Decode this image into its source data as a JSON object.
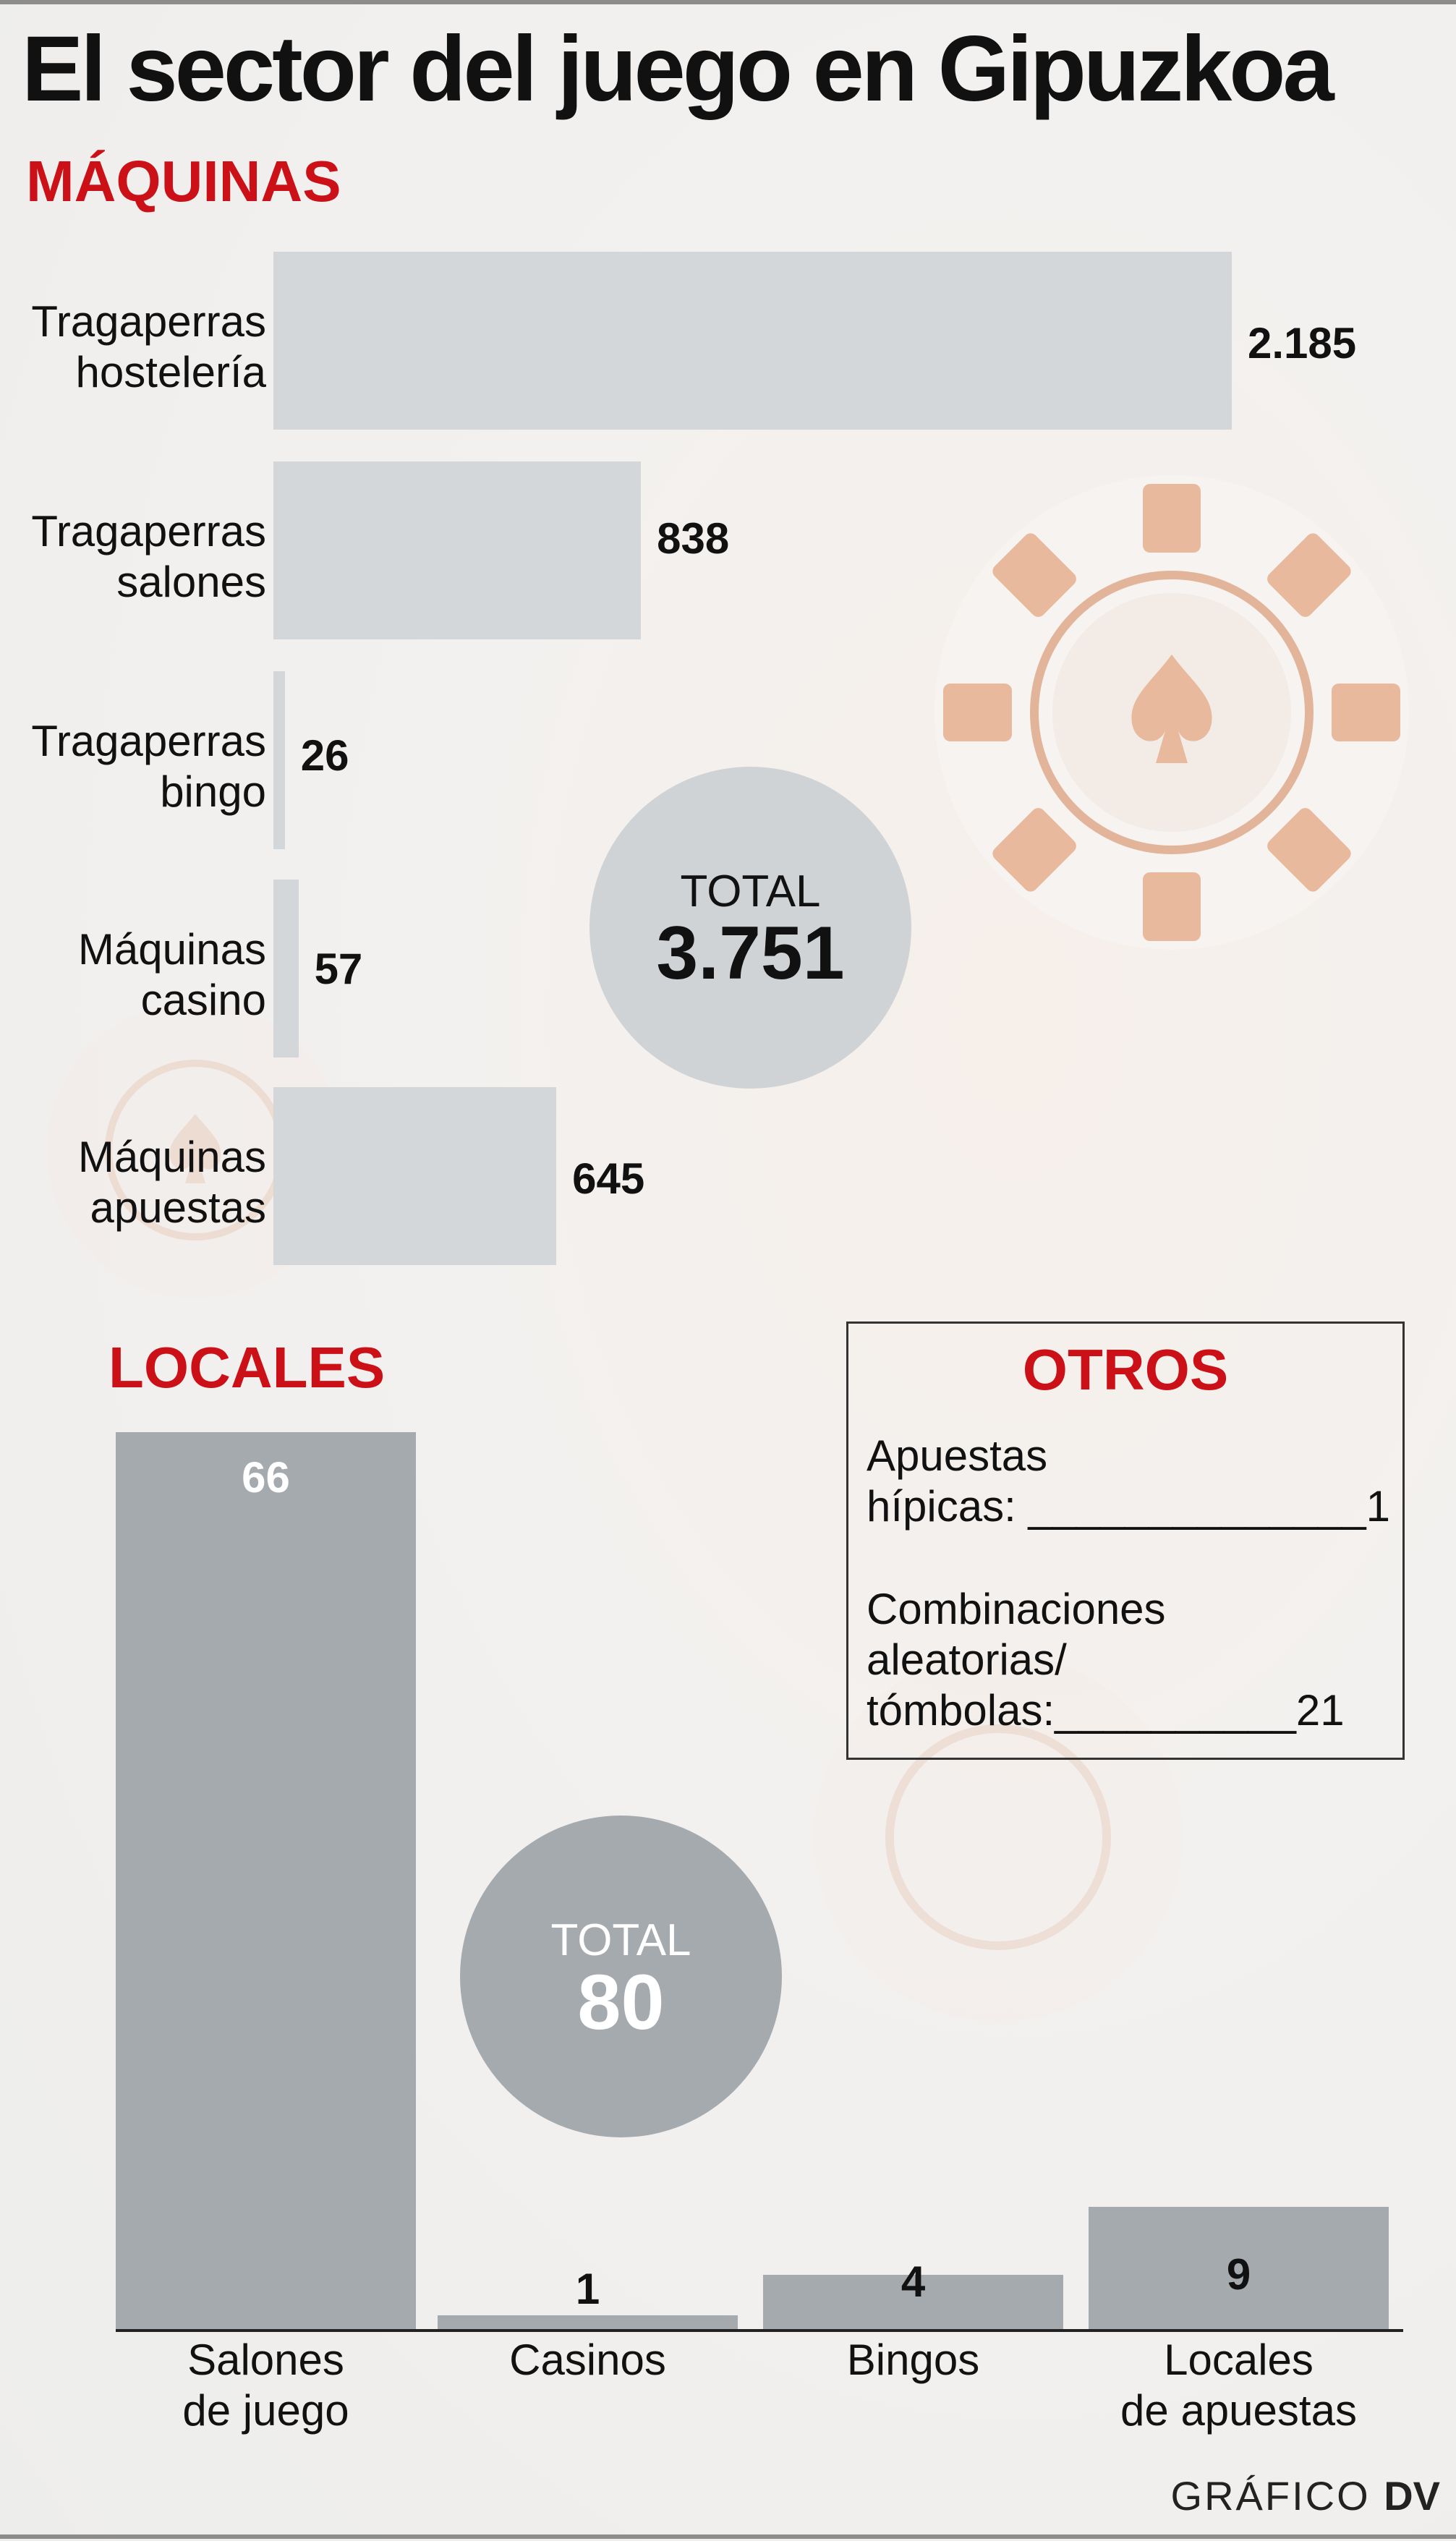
{
  "title": "El sector del juego en Gipuzkoa",
  "maquinas": {
    "heading": "MÁQUINAS",
    "total_label": "TOTAL",
    "total_value": "3.751"
  },
  "locales": {
    "heading": "LOCALES",
    "total_label": "TOTAL",
    "total_value": "80"
  },
  "otros": {
    "heading": "OTROS",
    "items": [
      {
        "lines": [
          "Apuestas",
          "hípicas: ______________1"
        ]
      },
      {
        "lines": [
          "Combinaciones",
          "aleatorias/",
          "tómbolas:__________21"
        ]
      }
    ]
  },
  "footer": {
    "label": "GRÁFICO",
    "brand": "DV"
  },
  "colors": {
    "accent_red": "#cc1017",
    "hbar": "#d4d7d9",
    "vbar": "#a5aaaf",
    "circle_top": "#d0d3d5",
    "circle_bottom": "#a5aaaf"
  },
  "chart_data": [
    {
      "type": "bar",
      "orientation": "horizontal",
      "title": "MÁQUINAS",
      "categories": [
        [
          "Tragaperras",
          "hostelería"
        ],
        [
          "Tragaperras",
          "salones"
        ],
        [
          "Tragaperras",
          "bingo"
        ],
        [
          "Máquinas",
          "casino"
        ],
        [
          "Máquinas",
          "apuestas"
        ]
      ],
      "values": [
        2185,
        838,
        26,
        57,
        645
      ],
      "value_labels": [
        "2.185",
        "838",
        "26",
        "57",
        "645"
      ],
      "xlim": [
        0,
        2185
      ]
    },
    {
      "type": "bar",
      "orientation": "vertical",
      "title": "LOCALES",
      "categories": [
        [
          "Salones",
          "de juego"
        ],
        [
          "Casinos"
        ],
        [
          "Bingos"
        ],
        [
          "Locales",
          "de apuestas"
        ]
      ],
      "values": [
        66,
        1,
        4,
        9
      ],
      "value_labels": [
        "66",
        "1",
        "4",
        "9"
      ],
      "ylim": [
        0,
        66
      ]
    }
  ]
}
